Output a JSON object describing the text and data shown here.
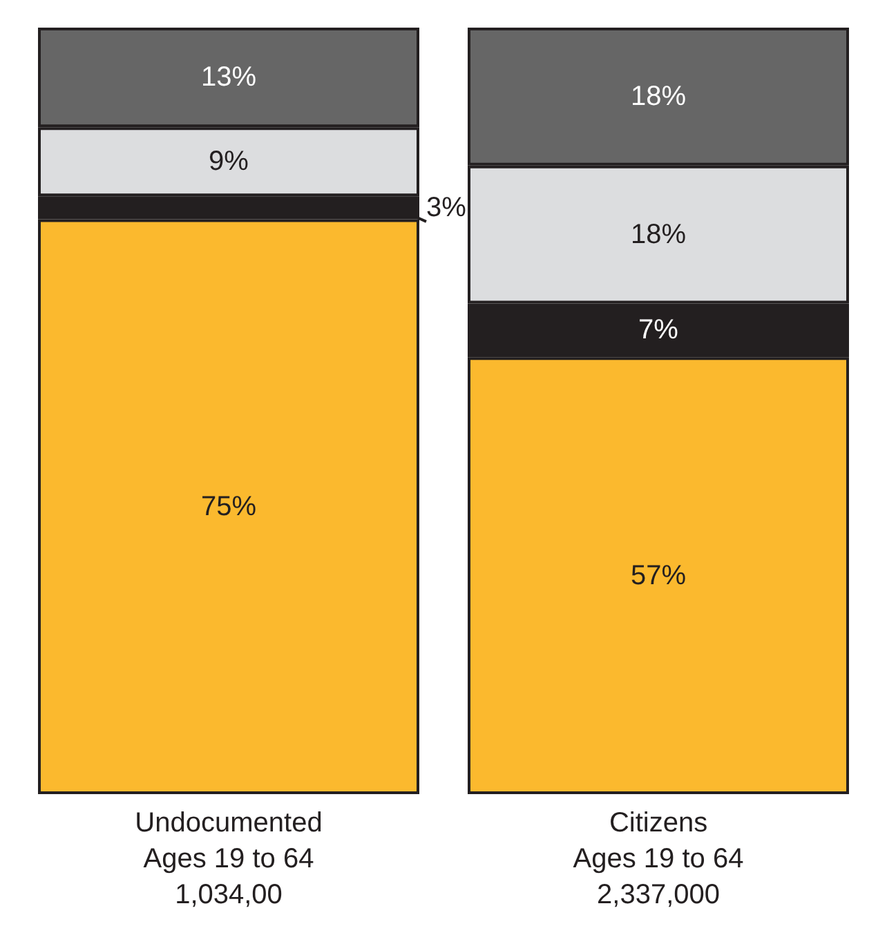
{
  "chart_data": {
    "type": "bar",
    "stacked": true,
    "categories": [
      "Undocumented\nAges 19 to 64\n1,034,00",
      "Citizens\nAges 19 to 64\n2,337,000"
    ],
    "series": [
      {
        "color": "#fbb92e",
        "values": [
          75,
          57
        ],
        "value_labels": [
          "75%",
          "57%"
        ]
      },
      {
        "color": "#231f20",
        "values": [
          3,
          7
        ],
        "value_labels": [
          "3%",
          "7%"
        ]
      },
      {
        "color": "#dcdddf",
        "values": [
          9,
          18
        ],
        "value_labels": [
          "9%",
          "18%"
        ]
      },
      {
        "color": "#666666",
        "values": [
          13,
          18
        ],
        "value_labels": [
          "13%",
          "18%"
        ]
      }
    ]
  }
}
